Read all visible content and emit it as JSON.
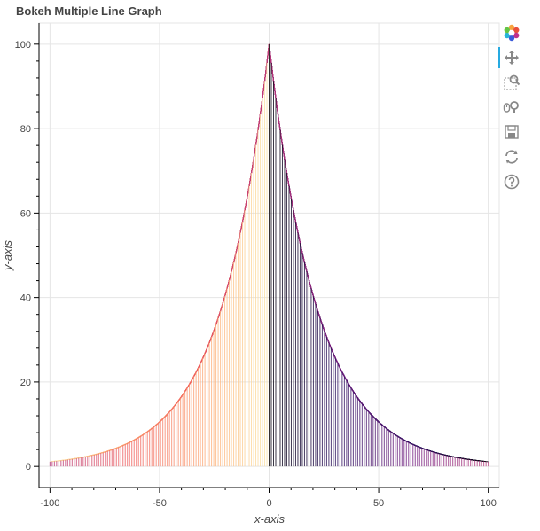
{
  "chart_data": {
    "type": "line",
    "title": "Bokeh Multiple Line Graph",
    "xlabel": "x-axis",
    "ylabel": "y-axis",
    "xlim": [
      -105,
      105
    ],
    "ylim": [
      -5,
      105
    ],
    "x_ticks": [
      -100,
      -50,
      0,
      50,
      100
    ],
    "y_ticks": [
      0,
      20,
      40,
      60,
      80,
      100
    ],
    "grid": true,
    "legend": "none",
    "series_description_values": {
      "count": 200,
      "left_family_x_start": -100,
      "right_family_x_end": 100,
      "peak_y": 100
    },
    "colormap": [
      "#fcfdbf",
      "#feb078",
      "#f1605d",
      "#b73779",
      "#721f81",
      "#2c115f",
      "#000004"
    ]
  },
  "toolbar": {
    "tools": [
      {
        "name": "bokeh-logo-icon"
      },
      {
        "name": "pan-icon"
      },
      {
        "name": "box-zoom-icon"
      },
      {
        "name": "wheel-zoom-icon"
      },
      {
        "name": "save-icon"
      },
      {
        "name": "reset-icon"
      },
      {
        "name": "help-icon"
      }
    ]
  }
}
